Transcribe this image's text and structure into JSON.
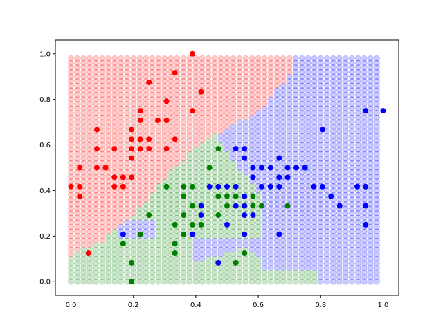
{
  "chart_data": {
    "type": "scatter",
    "title": "",
    "xlabel": "",
    "ylabel": "",
    "xlim": [
      -0.05,
      1.05
    ],
    "ylim": [
      -0.06,
      1.06
    ],
    "grid": false,
    "x_ticks": [
      "0.0",
      "0.2",
      "0.4",
      "0.6",
      "0.8",
      "1.0"
    ],
    "y_ticks": [
      "0.0",
      "0.2",
      "0.4",
      "0.6",
      "0.8",
      "1.0"
    ],
    "background_grid": {
      "x_start": 0.0,
      "x_end": 0.98,
      "x_count": 50,
      "y_start": 0.0,
      "y_end": 0.98,
      "y_count": 50,
      "colors": {
        "red": "#ff0000",
        "green": "#008000",
        "blue": "#0000ff"
      },
      "opacity": 0.2,
      "regions": {
        "note_red": "upper-left region",
        "red_boundary": [
          [
            0.0,
            0.12
          ],
          [
            0.1,
            0.18
          ],
          [
            0.2,
            0.3
          ],
          [
            0.3,
            0.45
          ],
          [
            0.4,
            0.6
          ],
          [
            0.5,
            0.67
          ],
          [
            0.6,
            0.75
          ],
          [
            0.7,
            0.9
          ],
          [
            0.72,
            1.0
          ]
        ],
        "blue_boundary": [
          [
            0.3,
            0.0
          ],
          [
            0.38,
            0.08
          ],
          [
            0.48,
            0.12
          ],
          [
            0.56,
            0.15
          ],
          [
            0.62,
            0.1
          ],
          [
            0.72,
            0.08
          ],
          [
            0.78,
            0.03
          ],
          [
            0.8,
            0.0
          ]
        ],
        "blue_left_edge": [
          [
            0.62,
            0.0
          ],
          [
            0.62,
            0.35
          ],
          [
            0.55,
            0.45
          ],
          [
            0.5,
            0.55
          ],
          [
            0.45,
            0.65
          ],
          [
            0.42,
            0.72
          ]
        ]
      }
    },
    "series": [
      {
        "color": "#ff0000",
        "points": [
          [
            0.0,
            0.417
          ],
          [
            0.028,
            0.5
          ],
          [
            0.028,
            0.417
          ],
          [
            0.028,
            0.375
          ],
          [
            0.056,
            0.125
          ],
          [
            0.083,
            0.667
          ],
          [
            0.083,
            0.583
          ],
          [
            0.083,
            0.5
          ],
          [
            0.111,
            0.5
          ],
          [
            0.111,
            0.5
          ],
          [
            0.139,
            0.583
          ],
          [
            0.139,
            0.458
          ],
          [
            0.139,
            0.417
          ],
          [
            0.167,
            0.458
          ],
          [
            0.167,
            0.417
          ],
          [
            0.194,
            0.667
          ],
          [
            0.194,
            0.625
          ],
          [
            0.194,
            0.583
          ],
          [
            0.194,
            0.542
          ],
          [
            0.194,
            0.458
          ],
          [
            0.222,
            0.75
          ],
          [
            0.222,
            0.708
          ],
          [
            0.222,
            0.625
          ],
          [
            0.222,
            0.583
          ],
          [
            0.25,
            0.875
          ],
          [
            0.25,
            0.625
          ],
          [
            0.25,
            0.583
          ],
          [
            0.278,
            0.708
          ],
          [
            0.306,
            0.792
          ],
          [
            0.306,
            0.708
          ],
          [
            0.306,
            0.583
          ],
          [
            0.333,
            0.917
          ],
          [
            0.333,
            0.625
          ],
          [
            0.389,
            1.0
          ],
          [
            0.389,
            0.75
          ],
          [
            0.417,
            0.833
          ]
        ]
      },
      {
        "color": "#008000",
        "points": [
          [
            0.167,
            0.167
          ],
          [
            0.194,
            0.083
          ],
          [
            0.194,
            0.0
          ],
          [
            0.222,
            0.208
          ],
          [
            0.25,
            0.292
          ],
          [
            0.306,
            0.417
          ],
          [
            0.333,
            0.25
          ],
          [
            0.333,
            0.167
          ],
          [
            0.333,
            0.125
          ],
          [
            0.361,
            0.417
          ],
          [
            0.361,
            0.375
          ],
          [
            0.361,
            0.292
          ],
          [
            0.361,
            0.208
          ],
          [
            0.389,
            0.417
          ],
          [
            0.389,
            0.333
          ],
          [
            0.389,
            0.25
          ],
          [
            0.417,
            0.25
          ],
          [
            0.444,
            0.5
          ],
          [
            0.472,
            0.583
          ],
          [
            0.472,
            0.375
          ],
          [
            0.472,
            0.292
          ],
          [
            0.5,
            0.375
          ],
          [
            0.5,
            0.333
          ],
          [
            0.528,
            0.375
          ],
          [
            0.528,
            0.083
          ],
          [
            0.556,
            0.125
          ],
          [
            0.583,
            0.375
          ],
          [
            0.583,
            0.333
          ],
          [
            0.611,
            0.333
          ],
          [
            0.639,
            0.417
          ],
          [
            0.694,
            0.333
          ],
          [
            0.75,
            0.5
          ]
        ]
      },
      {
        "color": "#0000ff",
        "points": [
          [
            0.167,
            0.208
          ],
          [
            0.389,
            0.208
          ],
          [
            0.417,
            0.333
          ],
          [
            0.417,
            0.292
          ],
          [
            0.444,
            0.417
          ],
          [
            0.472,
            0.417
          ],
          [
            0.472,
            0.083
          ],
          [
            0.5,
            0.417
          ],
          [
            0.5,
            0.25
          ],
          [
            0.528,
            0.583
          ],
          [
            0.528,
            0.417
          ],
          [
            0.528,
            0.333
          ],
          [
            0.556,
            0.583
          ],
          [
            0.556,
            0.542
          ],
          [
            0.556,
            0.375
          ],
          [
            0.556,
            0.333
          ],
          [
            0.556,
            0.292
          ],
          [
            0.556,
            0.208
          ],
          [
            0.583,
            0.5
          ],
          [
            0.583,
            0.458
          ],
          [
            0.583,
            0.292
          ],
          [
            0.611,
            0.5
          ],
          [
            0.611,
            0.417
          ],
          [
            0.639,
            0.5
          ],
          [
            0.639,
            0.417
          ],
          [
            0.667,
            0.542
          ],
          [
            0.667,
            0.458
          ],
          [
            0.667,
            0.417
          ],
          [
            0.667,
            0.208
          ],
          [
            0.694,
            0.5
          ],
          [
            0.694,
            0.458
          ],
          [
            0.722,
            0.5
          ],
          [
            0.75,
            0.5
          ],
          [
            0.778,
            0.417
          ],
          [
            0.806,
            0.667
          ],
          [
            0.806,
            0.417
          ],
          [
            0.833,
            0.375
          ],
          [
            0.861,
            0.333
          ],
          [
            0.917,
            0.417
          ],
          [
            0.944,
            0.75
          ],
          [
            0.944,
            0.417
          ],
          [
            0.944,
            0.333
          ],
          [
            0.944,
            0.25
          ],
          [
            1.0,
            0.75
          ]
        ]
      }
    ]
  }
}
